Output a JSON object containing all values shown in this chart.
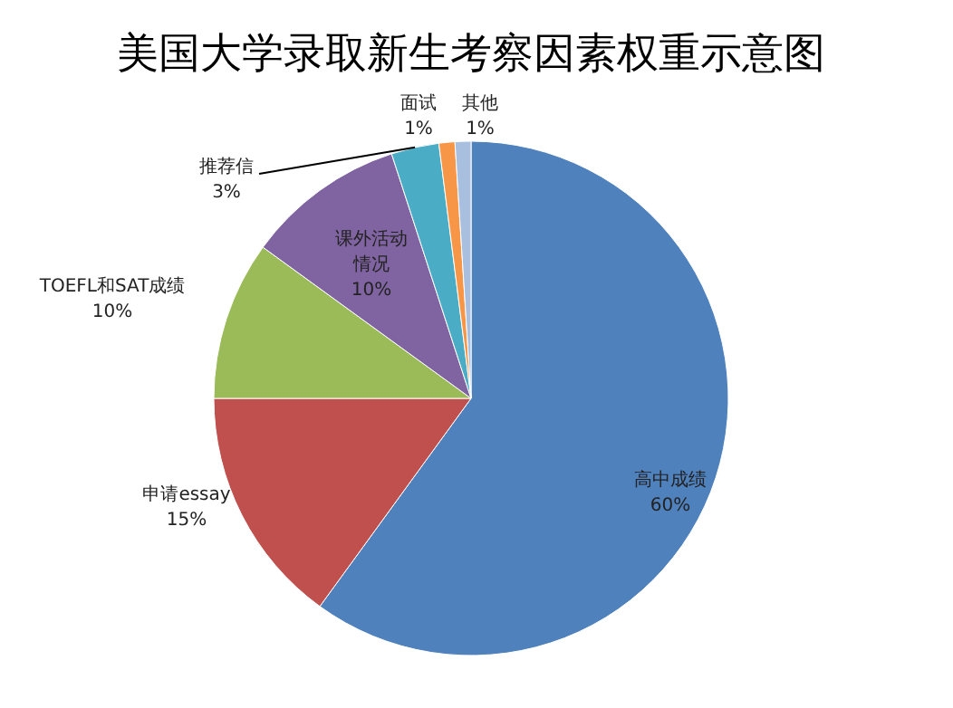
{
  "chart_data": {
    "type": "pie",
    "title": "美国大学录取新生考察因素权重示意图",
    "categories": [
      "高中成绩",
      "申请essay",
      "TOEFL和SAT成绩",
      "课外活动情况",
      "推荐信",
      "面试",
      "其他"
    ],
    "values": [
      60,
      15,
      10,
      10,
      3,
      1,
      1
    ],
    "value_labels": [
      "60%",
      "15%",
      "10%",
      "10%",
      "3%",
      "1%",
      "1%"
    ],
    "colors": [
      "#4f81bd",
      "#c0504d",
      "#9bbb59",
      "#8064a2",
      "#4bacc6",
      "#f79646",
      "#a9bfe0"
    ]
  }
}
